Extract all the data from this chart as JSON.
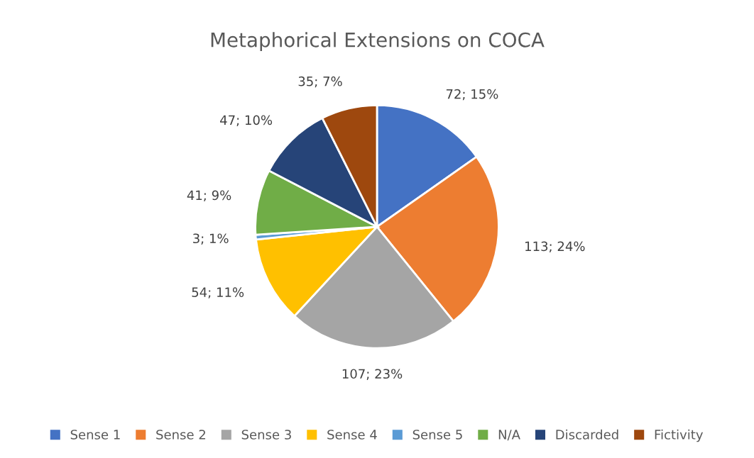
{
  "chart_data": {
    "type": "pie",
    "title": "Metaphorical Extensions on COCA",
    "categories": [
      "Sense 1",
      "Sense 2",
      "Sense 3",
      "Sense 4",
      "Sense 5",
      "N/A",
      "Discarded",
      "Fictivity"
    ],
    "values": [
      72,
      113,
      107,
      54,
      3,
      41,
      47,
      35
    ],
    "colors": [
      "#4472c4",
      "#ed7d31",
      "#a5a5a5",
      "#ffc000",
      "#5b9bd5",
      "#70ad47",
      "#264478",
      "#9e480e"
    ],
    "value_labels": [
      "72; 15%",
      "113; 24%",
      "107; 23%",
      "54; 11%",
      "3; 1%",
      "41; 9%",
      "47; 10%",
      "35; 7%"
    ],
    "legend": "bottom"
  }
}
